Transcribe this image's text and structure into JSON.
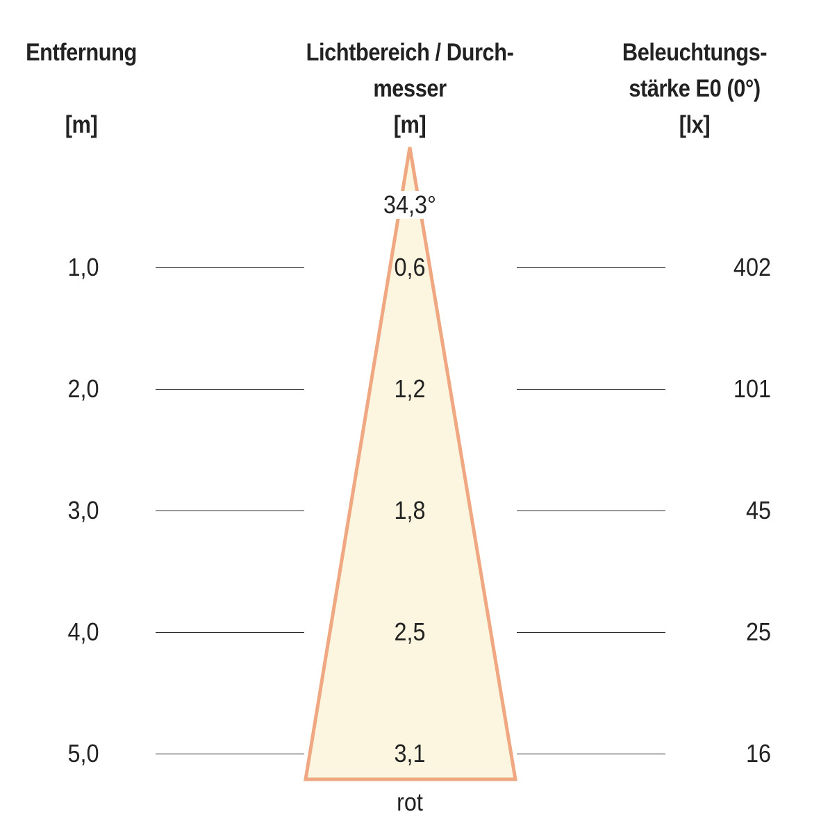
{
  "headers": {
    "distance": {
      "line1": "Entfernung",
      "line2": "",
      "unit": "[m]"
    },
    "diameter": {
      "line1": "Lichtbereich / Durch-",
      "line2": "messer",
      "unit": "[m]"
    },
    "illuminance": {
      "line1": "Beleuchtungs-",
      "line2": "stärke E0 (0°)",
      "unit": "[lx]"
    }
  },
  "beam_angle": "34,3°",
  "light_color": "rot",
  "colors": {
    "cone_fill": "#fcf5e0",
    "cone_stroke": "#f0a882",
    "text": "#222222",
    "rule": "#222222"
  },
  "chart_data": {
    "type": "table",
    "columns": [
      "Entfernung [m]",
      "Lichtbereich / Durchmesser [m]",
      "Beleuchtungsstärke E0 (0°) [lx]"
    ],
    "rows": [
      {
        "distance": "1,0",
        "diameter": "0,6",
        "illuminance": "402"
      },
      {
        "distance": "2,0",
        "diameter": "1,2",
        "illuminance": "101"
      },
      {
        "distance": "3,0",
        "diameter": "1,8",
        "illuminance": "45"
      },
      {
        "distance": "4,0",
        "diameter": "2,5",
        "illuminance": "25"
      },
      {
        "distance": "5,0",
        "diameter": "3,1",
        "illuminance": "16"
      }
    ]
  }
}
